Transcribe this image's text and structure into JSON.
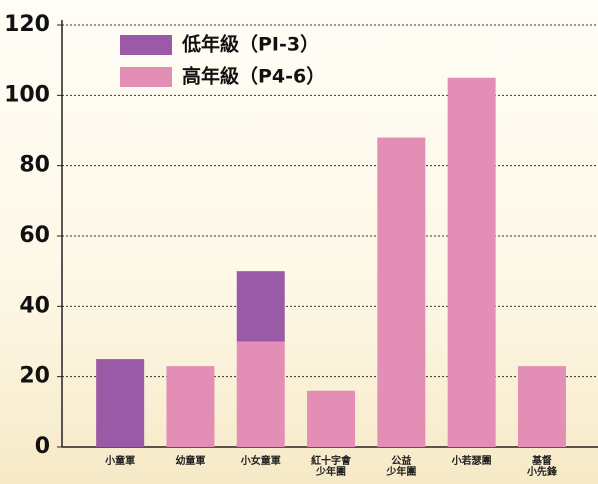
{
  "chart_data": {
    "type": "stacked_bar",
    "categories": [
      "小童軍",
      "幼童軍",
      "小女童軍",
      "紅十字會\n少年團",
      "公益\n少年團",
      "小若瑟團",
      "基督\n小先鋒"
    ],
    "series": [
      {
        "name": "高年級（P4-6）",
        "color": "#e38fb5",
        "values": [
          0,
          23,
          30,
          16,
          88,
          105,
          23
        ]
      },
      {
        "name": "低年級（PI-3）",
        "color": "#9b5aa5",
        "values": [
          25,
          0,
          20,
          0,
          0,
          0,
          0
        ]
      }
    ],
    "ylim": [
      0,
      120
    ],
    "yticks": [
      0,
      20,
      40,
      60,
      80,
      100,
      120
    ],
    "grid": true,
    "legend": "upper left"
  }
}
